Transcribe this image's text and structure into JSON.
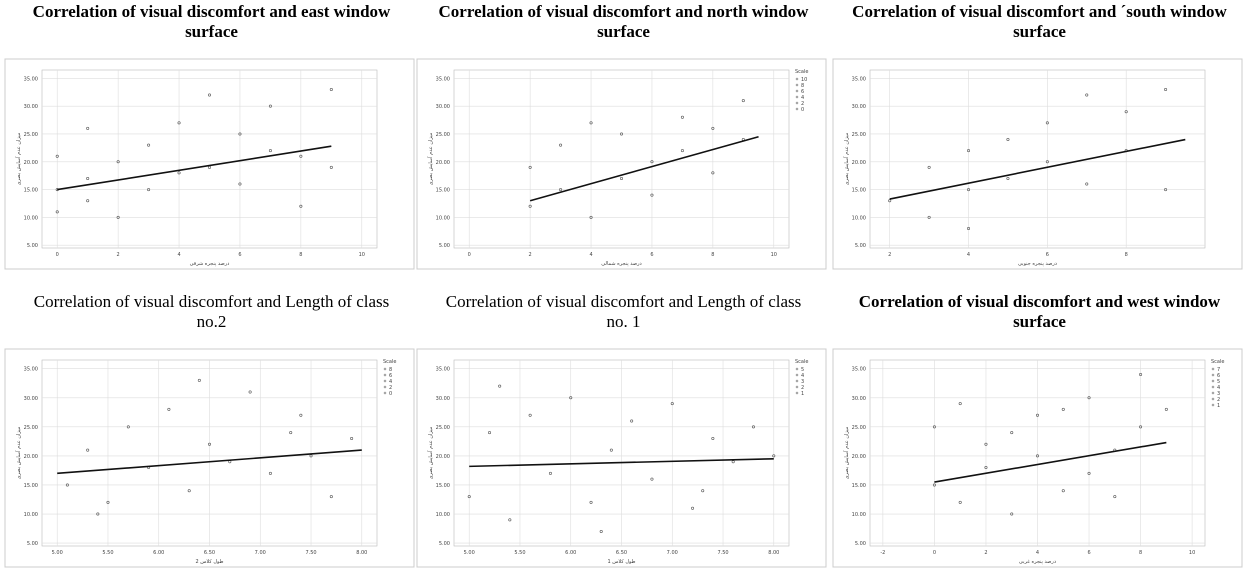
{
  "chart_data": [
    {
      "type": "scatter",
      "title": "Correlation of visual discomfort and east window surface",
      "bold": true,
      "x_label": "درصد پنجره شرقی",
      "y_label": "میزان عدم آسایش بصری",
      "x": [
        0,
        0,
        0,
        1,
        1,
        1,
        2,
        2,
        3,
        3,
        4,
        4,
        5,
        5,
        6,
        6,
        7,
        7,
        8,
        8,
        9,
        9
      ],
      "y": [
        15,
        21,
        11,
        17,
        13,
        26,
        20,
        10,
        23,
        15,
        18,
        27,
        19,
        32,
        25,
        16,
        22,
        30,
        21,
        12,
        33,
        19
      ],
      "fit": {
        "x": [
          0,
          9
        ],
        "y": [
          15,
          22.8
        ]
      },
      "xlim": [
        -0.5,
        10.5
      ],
      "xticks": [
        0,
        2,
        4,
        6,
        8,
        10
      ],
      "ylim": [
        4.5,
        36.5
      ],
      "yticks": [
        {
          "value": 5,
          "label": "5.00"
        },
        {
          "value": 10,
          "label": "10.00"
        },
        {
          "value": 15,
          "label": "15.00"
        },
        {
          "value": 20,
          "label": "20.00"
        },
        {
          "value": 25,
          "label": "25.00"
        },
        {
          "value": 30,
          "label": "30.00"
        },
        {
          "value": 35,
          "label": "35.00"
        }
      ],
      "color": "#555555",
      "grid": true
    },
    {
      "type": "scatter",
      "title": "Correlation of visual discomfort and north window surface",
      "bold": true,
      "x_label": "درصد پنجره شمالی",
      "y_label": "میزان عدم آسایش بصری",
      "legend_title": "Scale",
      "legend_items": [
        "10",
        "8",
        "6",
        "4",
        "2",
        "0"
      ],
      "x": [
        2,
        2,
        3,
        3,
        4,
        4,
        5,
        5,
        6,
        6,
        7,
        7,
        8,
        8,
        9,
        9
      ],
      "y": [
        12,
        19,
        15,
        23,
        10,
        27,
        17,
        25,
        14,
        20,
        22,
        28,
        18,
        26,
        24,
        31
      ],
      "fit": {
        "x": [
          2,
          9.5
        ],
        "y": [
          13,
          24.5
        ]
      },
      "xlim": [
        -0.5,
        10.5
      ],
      "xticks": [
        0,
        2,
        4,
        6,
        8,
        10
      ],
      "ylim": [
        4.5,
        36.5
      ],
      "yticks": [
        {
          "value": 5,
          "label": "5.00"
        },
        {
          "value": 10,
          "label": "10.00"
        },
        {
          "value": 15,
          "label": "15.00"
        },
        {
          "value": 20,
          "label": "20.00"
        },
        {
          "value": 25,
          "label": "25.00"
        },
        {
          "value": 30,
          "label": "30.00"
        },
        {
          "value": 35,
          "label": "35.00"
        }
      ],
      "color": "#555555",
      "grid": true
    },
    {
      "type": "scatter",
      "title": "Correlation of visual discomfort and ´south window surface",
      "bold": true,
      "x_label": "درصد پنجره جنوبی",
      "y_label": "میزان عدم آسایش بصری",
      "x": [
        2,
        3,
        3,
        4,
        4,
        4,
        5,
        5,
        6,
        6,
        7,
        7,
        8,
        8,
        9,
        9
      ],
      "y": [
        13,
        10,
        19,
        15,
        22,
        8,
        17,
        24,
        20,
        27,
        16,
        32,
        22,
        29,
        15,
        33
      ],
      "fit": {
        "x": [
          2,
          9.5
        ],
        "y": [
          13.3,
          24
        ]
      },
      "xlim": [
        1.5,
        10
      ],
      "xticks": [
        2,
        4,
        6,
        8
      ],
      "ylim": [
        4.5,
        36.5
      ],
      "yticks": [
        {
          "value": 5,
          "label": "5.00"
        },
        {
          "value": 10,
          "label": "10.00"
        },
        {
          "value": 15,
          "label": "15.00"
        },
        {
          "value": 20,
          "label": "20.00"
        },
        {
          "value": 25,
          "label": "25.00"
        },
        {
          "value": 30,
          "label": "30.00"
        },
        {
          "value": 35,
          "label": "35.00"
        }
      ],
      "color": "#555555",
      "grid": true
    },
    {
      "type": "scatter",
      "title": "Correlation of visual discomfort and Length of class no.2",
      "bold": false,
      "x_label": "طول کلاس 2",
      "y_label": "میزان عدم آسایش بصری",
      "legend_title": "Scale",
      "legend_items": [
        "8",
        "6",
        "4",
        "2",
        "0"
      ],
      "x": [
        5.1,
        5.3,
        5.5,
        5.7,
        5.9,
        6.1,
        6.3,
        6.5,
        6.7,
        6.9,
        7.1,
        7.3,
        7.5,
        7.7,
        7.9,
        5.4,
        6.4,
        7.4
      ],
      "y": [
        15,
        21,
        12,
        25,
        18,
        28,
        14,
        22,
        19,
        31,
        17,
        24,
        20,
        13,
        23,
        10,
        33,
        27
      ],
      "fit": {
        "x": [
          5,
          8
        ],
        "y": [
          17,
          21
        ]
      },
      "xlim": [
        4.85,
        8.15
      ],
      "xticks": [
        {
          "value": 5,
          "label": "5.00"
        },
        {
          "value": 5.5,
          "label": "5.50"
        },
        {
          "value": 6,
          "label": "6.00"
        },
        {
          "value": 6.5,
          "label": "6.50"
        },
        {
          "value": 7,
          "label": "7.00"
        },
        {
          "value": 7.5,
          "label": "7.50"
        },
        {
          "value": 8,
          "label": "8.00"
        }
      ],
      "ylim": [
        4.5,
        36.5
      ],
      "yticks": [
        {
          "value": 5,
          "label": "5.00"
        },
        {
          "value": 10,
          "label": "10.00"
        },
        {
          "value": 15,
          "label": "15.00"
        },
        {
          "value": 20,
          "label": "20.00"
        },
        {
          "value": 25,
          "label": "25.00"
        },
        {
          "value": 30,
          "label": "30.00"
        },
        {
          "value": 35,
          "label": "35.00"
        }
      ],
      "color": "#555555",
      "grid": true
    },
    {
      "type": "scatter",
      "title": "Correlation of visual discomfort and Length of class no. 1",
      "bold": false,
      "x_label": "طول کلاس 1",
      "y_label": "میزان عدم آسایش بصری",
      "legend_title": "Scale",
      "legend_items": [
        "5",
        "4",
        "3",
        "2",
        "1"
      ],
      "x": [
        5.0,
        5.2,
        5.4,
        5.6,
        5.8,
        6.0,
        6.2,
        6.4,
        6.6,
        6.8,
        7.0,
        7.2,
        7.4,
        7.6,
        7.8,
        5.3,
        6.3,
        7.3,
        8.0
      ],
      "y": [
        13,
        24,
        9,
        27,
        17,
        30,
        12,
        21,
        26,
        16,
        29,
        11,
        23,
        19,
        25,
        32,
        7,
        14,
        20
      ],
      "fit": {
        "x": [
          5,
          8
        ],
        "y": [
          18.2,
          19.5
        ]
      },
      "xlim": [
        4.85,
        8.15
      ],
      "xticks": [
        {
          "value": 5,
          "label": "5.00"
        },
        {
          "value": 5.5,
          "label": "5.50"
        },
        {
          "value": 6,
          "label": "6.00"
        },
        {
          "value": 6.5,
          "label": "6.50"
        },
        {
          "value": 7,
          "label": "7.00"
        },
        {
          "value": 7.5,
          "label": "7.50"
        },
        {
          "value": 8,
          "label": "8.00"
        }
      ],
      "ylim": [
        4.5,
        36.5
      ],
      "yticks": [
        {
          "value": 5,
          "label": "5.00"
        },
        {
          "value": 10,
          "label": "10.00"
        },
        {
          "value": 15,
          "label": "15.00"
        },
        {
          "value": 20,
          "label": "20.00"
        },
        {
          "value": 25,
          "label": "25.00"
        },
        {
          "value": 30,
          "label": "30.00"
        },
        {
          "value": 35,
          "label": "35.00"
        }
      ],
      "color": "#555555",
      "grid": true
    },
    {
      "type": "scatter",
      "title": "Correlation of visual discomfort and west window surface",
      "bold": true,
      "x_label": "درصد پنجره غربی",
      "y_label": "میزان عدم آسایش بصری",
      "legend_title": "Scale",
      "legend_items": [
        "7",
        "6",
        "5",
        "4",
        "3",
        "2",
        "1"
      ],
      "x": [
        0,
        0,
        1,
        1,
        2,
        2,
        3,
        3,
        4,
        4,
        5,
        5,
        6,
        6,
        7,
        7,
        8,
        8,
        9
      ],
      "y": [
        15,
        25,
        12,
        29,
        18,
        22,
        10,
        24,
        20,
        27,
        14,
        28,
        17,
        30,
        21,
        13,
        34,
        25,
        28
      ],
      "fit": {
        "x": [
          0,
          9
        ],
        "y": [
          15.5,
          22.3
        ]
      },
      "xlim": [
        -2.5,
        10.5
      ],
      "xticks": [
        -2,
        0,
        2,
        4,
        6,
        8,
        10
      ],
      "ylim": [
        4.5,
        36.5
      ],
      "yticks": [
        {
          "value": 5,
          "label": "5.00"
        },
        {
          "value": 10,
          "label": "10.00"
        },
        {
          "value": 15,
          "label": "15.00"
        },
        {
          "value": 20,
          "label": "20.00"
        },
        {
          "value": 25,
          "label": "25.00"
        },
        {
          "value": 30,
          "label": "30.00"
        },
        {
          "value": 35,
          "label": "35.00"
        }
      ],
      "color": "#555555",
      "grid": true
    }
  ]
}
